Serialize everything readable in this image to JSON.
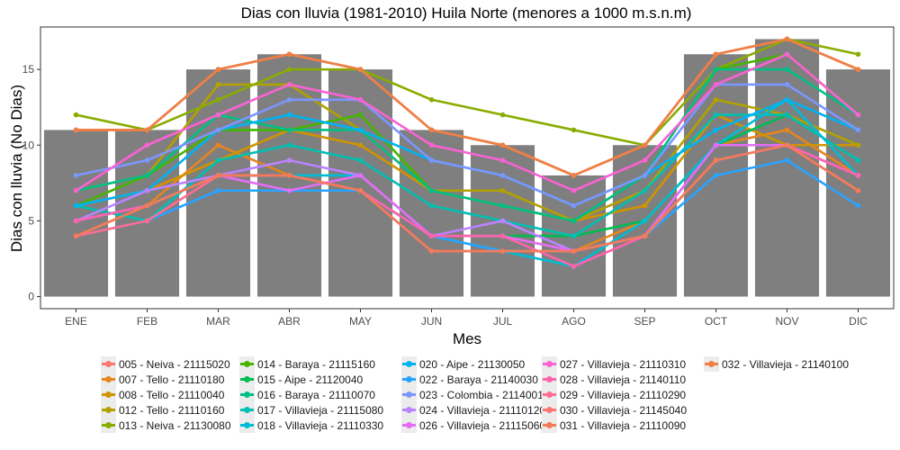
{
  "chart_data": {
    "type": "bar",
    "title": "Dias con lluvia (1981-2010) Huila Norte (menores a 1000 m.s.n.m)",
    "xlabel": "Mes",
    "ylabel": "Dias con lluvia (No Dias)",
    "categories": [
      "ENE",
      "FEB",
      "MAR",
      "ABR",
      "MAY",
      "JUN",
      "JUL",
      "AGO",
      "SEP",
      "OCT",
      "NOV",
      "DIC"
    ],
    "values": [
      11,
      11,
      15,
      16,
      15,
      11,
      10,
      8,
      10,
      16,
      17,
      15
    ],
    "bar_color": "#7f7f7f",
    "ylim": [
      -0.8,
      17.8
    ],
    "yticks": [
      0,
      5,
      10,
      15
    ],
    "grid": false,
    "legend_position": "bottom",
    "series": [
      {
        "name": "005 - Neiva - 21115020",
        "color": "#F8766D",
        "values": [
          11,
          11,
          15,
          16,
          15,
          11,
          10,
          8,
          10,
          16,
          17,
          15
        ]
      },
      {
        "name": "007 - Tello - 21110180",
        "color": "#E7851E",
        "values": [
          4,
          6,
          10,
          8,
          7,
          4,
          4,
          3,
          5,
          10,
          11,
          8
        ]
      },
      {
        "name": "008 - Tello - 21110040",
        "color": "#D09400",
        "values": [
          6,
          7,
          9,
          11,
          10,
          7,
          6,
          5,
          6,
          12,
          10,
          10
        ]
      },
      {
        "name": "012 - Tello - 21110160",
        "color": "#B2A100",
        "values": [
          7,
          8,
          14,
          14,
          11,
          7,
          7,
          5,
          7,
          13,
          12,
          10
        ]
      },
      {
        "name": "013 - Neiva - 21130080",
        "color": "#89AC00",
        "values": [
          12,
          11,
          13,
          15,
          15,
          13,
          12,
          11,
          10,
          15,
          17,
          16
        ]
      },
      {
        "name": "014 - Baraya - 21115160",
        "color": "#45B500",
        "values": [
          6,
          8,
          11,
          11,
          12,
          7,
          6,
          5,
          8,
          15,
          16,
          12
        ]
      },
      {
        "name": "015 - Aipe - 21120040",
        "color": "#00BC51",
        "values": [
          5,
          6,
          8,
          8,
          7,
          4,
          4,
          4,
          5,
          10,
          12,
          9
        ]
      },
      {
        "name": "016 - Baraya - 21110070",
        "color": "#00C087",
        "values": [
          7,
          8,
          12,
          11,
          11,
          7,
          6,
          5,
          8,
          15,
          15,
          12
        ]
      },
      {
        "name": "017 - Villavieja - 21115080",
        "color": "#00C0B2",
        "values": [
          6,
          5,
          9,
          10,
          9,
          6,
          5,
          4,
          7,
          12,
          12,
          9
        ]
      },
      {
        "name": "018 - Villavieja - 21110330",
        "color": "#00BCD6",
        "values": [
          5,
          6,
          8,
          8,
          8,
          4,
          3,
          2,
          5,
          10,
          13,
          8
        ]
      },
      {
        "name": "020 - Aipe - 21130050",
        "color": "#00B3F2",
        "values": [
          6,
          7,
          11,
          12,
          11,
          9,
          8,
          6,
          8,
          11,
          13,
          11
        ]
      },
      {
        "name": "022 - Baraya - 21140030",
        "color": "#29A3FF",
        "values": [
          4,
          5,
          7,
          7,
          7,
          4,
          3,
          3,
          4,
          8,
          9,
          6
        ]
      },
      {
        "name": "023 - Colombia - 21140010",
        "color": "#7C96FF",
        "values": [
          8,
          9,
          11,
          13,
          13,
          9,
          8,
          6,
          8,
          14,
          14,
          11
        ]
      },
      {
        "name": "024 - Villavieja - 21110120",
        "color": "#BB83FF",
        "values": [
          5,
          7,
          8,
          9,
          8,
          4,
          5,
          3,
          4,
          10,
          10,
          8
        ]
      },
      {
        "name": "026 - Villavieja - 21115060",
        "color": "#E46DF6",
        "values": [
          5,
          6,
          8,
          7,
          8,
          4,
          4,
          3,
          4,
          10,
          10,
          8
        ]
      },
      {
        "name": "027 - Villavieja - 21110310",
        "color": "#FA62D4",
        "values": [
          7,
          10,
          12,
          14,
          13,
          10,
          9,
          7,
          9,
          14,
          16,
          12
        ]
      },
      {
        "name": "028 - Villavieja - 21140110",
        "color": "#FF62AD",
        "values": [
          5,
          6,
          8,
          8,
          7,
          4,
          4,
          2,
          4,
          9,
          10,
          8
        ]
      },
      {
        "name": "029 - Villavieja - 21110290",
        "color": "#FF6C91",
        "values": [
          4,
          5,
          8,
          8,
          7,
          3,
          3,
          3,
          4,
          9,
          10,
          7
        ]
      },
      {
        "name": "030 - Villavieja - 21145040",
        "color": "#F8766D",
        "values": [
          11,
          11,
          15,
          16,
          15,
          11,
          10,
          8,
          10,
          16,
          17,
          15
        ]
      },
      {
        "name": "031 - Villavieja - 21110090",
        "color": "#F37B59",
        "values": [
          4,
          6,
          8,
          8,
          7,
          3,
          3,
          3,
          4,
          9,
          10,
          7
        ]
      },
      {
        "name": "032 - Villavieja - 21140100",
        "color": "#EE8044",
        "values": [
          11,
          11,
          15,
          16,
          15,
          11,
          10,
          8,
          10,
          16,
          17,
          15
        ]
      }
    ]
  }
}
